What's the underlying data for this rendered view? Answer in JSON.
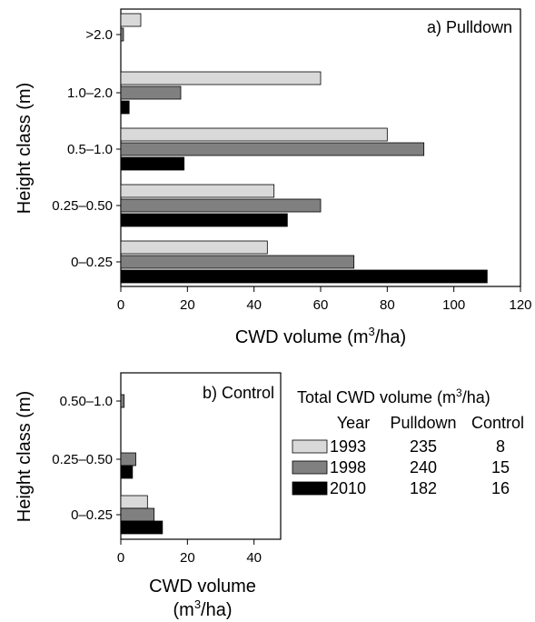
{
  "chart_data": [
    {
      "type": "bar",
      "orientation": "horizontal",
      "panel_label": "a) Pulldown",
      "categories": [
        "0–0.25",
        "0.25–0.50",
        "0.5–1.0",
        "1.0–2.0",
        ">2.0"
      ],
      "series": [
        {
          "name": "1993",
          "color": "#d9d9d9",
          "values": [
            44,
            46,
            80,
            60,
            6
          ]
        },
        {
          "name": "1998",
          "color": "#808080",
          "values": [
            70,
            60,
            91,
            18,
            0.8
          ]
        },
        {
          "name": "2010",
          "color": "#000000",
          "values": [
            110,
            50,
            19,
            2.5,
            0
          ]
        }
      ],
      "xlabel": "CWD volume (m",
      "xlabel_sup": "3",
      "xlabel_tail": "/ha)",
      "ylabel": "Height class (m)",
      "xlim": [
        0,
        120
      ],
      "xticks": [
        0,
        20,
        40,
        60,
        80,
        100,
        120
      ],
      "grid": false
    },
    {
      "type": "bar",
      "orientation": "horizontal",
      "panel_label": "b) Control",
      "categories": [
        "0–0.25",
        "0.25–0.50",
        "0.50–1.0"
      ],
      "series": [
        {
          "name": "1993",
          "color": "#d9d9d9",
          "values": [
            8,
            0,
            0
          ]
        },
        {
          "name": "1998",
          "color": "#808080",
          "values": [
            10,
            4.5,
            1
          ]
        },
        {
          "name": "2010",
          "color": "#000000",
          "values": [
            12.5,
            3.5,
            0
          ]
        }
      ],
      "xlabel_line1": "CWD volume",
      "xlabel_line2": "(m",
      "xlabel_sup": "3",
      "xlabel_tail": "/ha)",
      "ylabel": "Height class (m)",
      "xlim": [
        0,
        48
      ],
      "xticks": [
        0,
        20,
        40
      ],
      "grid": false
    }
  ],
  "summary_table": {
    "title": "Total CWD volume (m",
    "title_sup": "3",
    "title_tail": "/ha)",
    "headers": [
      "Year",
      "Pulldown",
      "Control"
    ],
    "rows": [
      {
        "year": "1993",
        "pulldown": "235",
        "control": "8",
        "color": "#d9d9d9"
      },
      {
        "year": "1998",
        "pulldown": "240",
        "control": "15",
        "color": "#808080"
      },
      {
        "year": "2010",
        "pulldown": "182",
        "control": "16",
        "color": "#000000"
      }
    ]
  }
}
